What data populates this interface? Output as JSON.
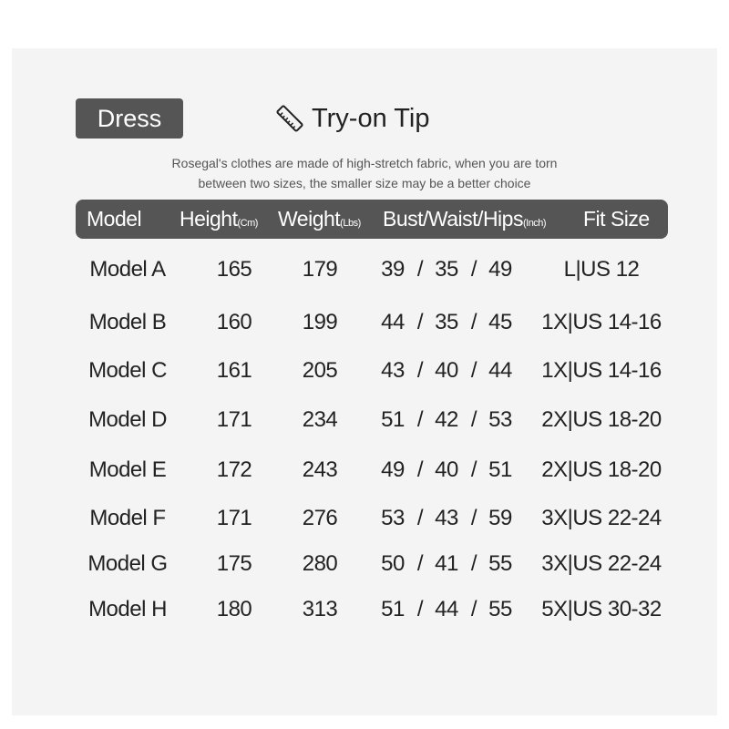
{
  "category": "Dress",
  "tip": {
    "title": "Try-on Tip",
    "icon": "ruler-icon",
    "text": [
      "Rosegal's clothes are made of high-stretch fabric, when you are torn",
      "between two sizes, the smaller size may be a better choice"
    ]
  },
  "headers": {
    "model": "Model",
    "height": "Height",
    "height_unit": "(Cm)",
    "weight": "Weight",
    "weight_unit": "(Lbs)",
    "measures": "Bust/Waist/Hips",
    "measures_unit": "(Inch)",
    "fit": "Fit Size"
  },
  "rows": [
    {
      "model": "Model A",
      "height": "165",
      "weight": "179",
      "bust": "39",
      "waist": "35",
      "hips": "49",
      "fit": "L|US 12"
    },
    {
      "model": "Model B",
      "height": "160",
      "weight": "199",
      "bust": "44",
      "waist": "35",
      "hips": "45",
      "fit": "1X|US 14-16"
    },
    {
      "model": "Model C",
      "height": "161",
      "weight": "205",
      "bust": "43",
      "waist": "40",
      "hips": "44",
      "fit": "1X|US 14-16"
    },
    {
      "model": "Model D",
      "height": "171",
      "weight": "234",
      "bust": "51",
      "waist": "42",
      "hips": "53",
      "fit": "2X|US 18-20"
    },
    {
      "model": "Model E",
      "height": "172",
      "weight": "243",
      "bust": "49",
      "waist": "40",
      "hips": "51",
      "fit": "2X|US 18-20"
    },
    {
      "model": "Model F",
      "height": "171",
      "weight": "276",
      "bust": "53",
      "waist": "43",
      "hips": "59",
      "fit": "3X|US 22-24"
    },
    {
      "model": "Model G",
      "height": "175",
      "weight": "280",
      "bust": "50",
      "waist": "41",
      "hips": "55",
      "fit": "3X|US 22-24"
    },
    {
      "model": "Model H",
      "height": "180",
      "weight": "313",
      "bust": "51",
      "waist": "44",
      "hips": "55",
      "fit": "5X|US 30-32"
    }
  ],
  "separator": "/"
}
